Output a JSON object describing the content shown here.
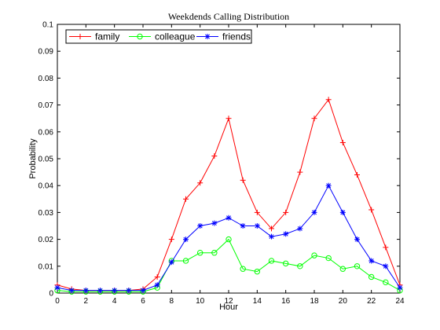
{
  "chart_data": {
    "type": "line",
    "title": "Weekdends Calling Distribution",
    "xlabel": "Hour",
    "ylabel": "Probability",
    "xlim": [
      0,
      24
    ],
    "ylim": [
      0,
      0.1
    ],
    "x_ticks": [
      0,
      2,
      4,
      6,
      8,
      10,
      12,
      14,
      16,
      18,
      20,
      22,
      24
    ],
    "y_ticks": [
      0,
      0.01,
      0.02,
      0.03,
      0.04,
      0.05,
      0.06,
      0.07,
      0.08,
      0.09,
      0.1
    ],
    "grid": false,
    "legend_position": "top-left",
    "x": [
      0,
      1,
      2,
      3,
      4,
      5,
      6,
      7,
      8,
      9,
      10,
      11,
      12,
      13,
      14,
      15,
      16,
      17,
      18,
      19,
      20,
      21,
      22,
      23,
      24
    ],
    "series": [
      {
        "name": "family",
        "color": "#ff0000",
        "marker": "plus",
        "values": [
          0.003,
          0.0015,
          0.001,
          0.001,
          0.001,
          0.001,
          0.0015,
          0.006,
          0.02,
          0.035,
          0.041,
          0.051,
          0.065,
          0.042,
          0.03,
          0.024,
          0.03,
          0.045,
          0.065,
          0.072,
          0.056,
          0.044,
          0.031,
          0.017,
          0.003
        ]
      },
      {
        "name": "colleague",
        "color": "#00ff00",
        "marker": "circle",
        "values": [
          0.001,
          0.0005,
          0.0005,
          0.0005,
          0.0005,
          0.0005,
          0.0005,
          0.002,
          0.012,
          0.012,
          0.015,
          0.015,
          0.02,
          0.009,
          0.008,
          0.012,
          0.011,
          0.01,
          0.014,
          0.013,
          0.009,
          0.01,
          0.006,
          0.004,
          0.001
        ]
      },
      {
        "name": "friends",
        "color": "#0000ff",
        "marker": "star",
        "values": [
          0.002,
          0.001,
          0.001,
          0.001,
          0.001,
          0.001,
          0.001,
          0.003,
          0.0115,
          0.02,
          0.025,
          0.026,
          0.028,
          0.025,
          0.025,
          0.021,
          0.022,
          0.024,
          0.03,
          0.04,
          0.03,
          0.02,
          0.012,
          0.01,
          0.002
        ]
      }
    ]
  }
}
